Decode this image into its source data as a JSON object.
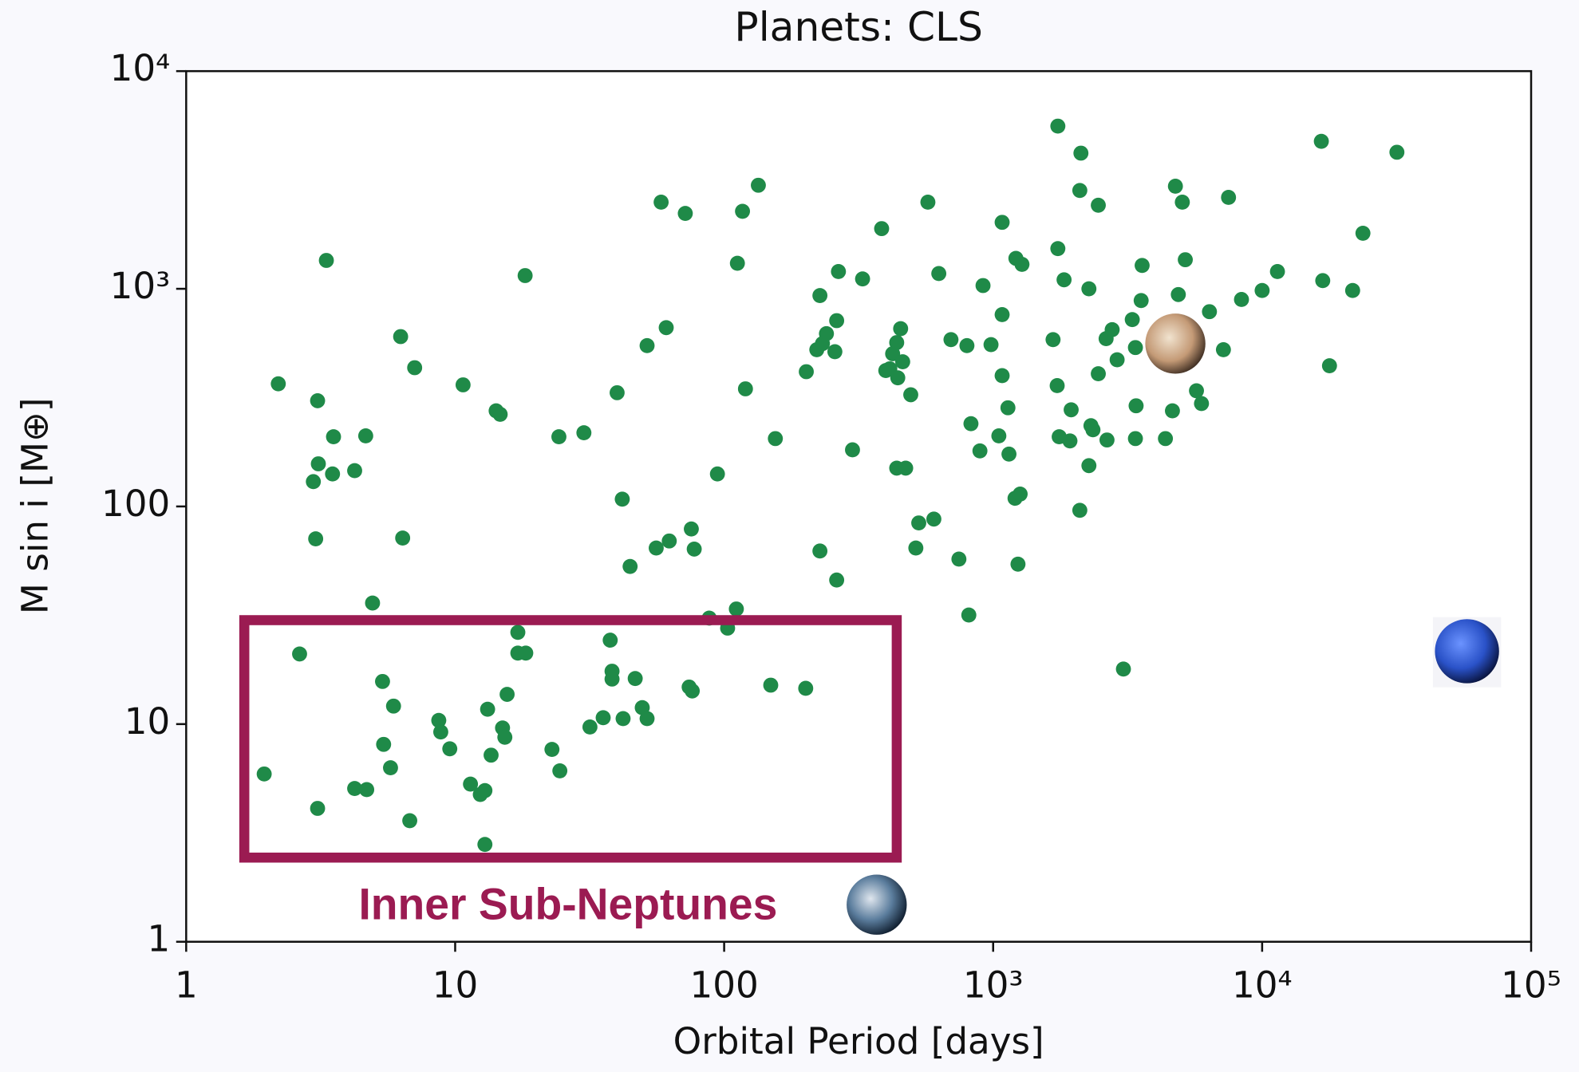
{
  "chart_data": {
    "type": "scatter",
    "title": "Planets: CLS",
    "x_label": "Orbital Period [days]",
    "y_label": "M sin i [M⊕]",
    "annotation": "Inner Sub-Neptunes",
    "xscale": "log",
    "yscale": "log",
    "color": "#1f8a48",
    "xlim": [
      1,
      100000
    ],
    "ylim": [
      1,
      10000
    ],
    "xticks": [
      1,
      10,
      100,
      {
        "value": 1000,
        "label": "10³"
      },
      {
        "value": 10000,
        "label": "10⁴"
      },
      {
        "value": 100000,
        "label": "10⁵"
      }
    ],
    "yticks": [
      1,
      10,
      100,
      {
        "value": 1000,
        "label": "10³"
      },
      {
        "value": 10000,
        "label": "10⁴"
      }
    ],
    "x": [
      1.95,
      2.2,
      2.64,
      3.08,
      3.08,
      3.1,
      2.97,
      3.03,
      3.32,
      3.5,
      3.53,
      4.23,
      4.23,
      4.65,
      4.69,
      4.93,
      5.37,
      5.42,
      5.75,
      5.9,
      6.27,
      6.38,
      6.78,
      7.07,
      8.69,
      8.84,
      9.55,
      10.7,
      11.4,
      12.4,
      12.9,
      12.9,
      13.2,
      13.6,
      14.2,
      14.7,
      15.0,
      15.3,
      15.6,
      17.1,
      17.1,
      18.3,
      18.2,
      22.9,
      24.3,
      24.5,
      30.1,
      31.7,
      35.5,
      37.7,
      38.3,
      38.3,
      40,
      41.8,
      42.1,
      44.7,
      46.7,
      49.6,
      51.7,
      51.7,
      55.9,
      58.3,
      60.9,
      62.5,
      71.7,
      74.1,
      76.1,
      75.5,
      77.4,
      88,
      94.4,
      103,
      111,
      112,
      117,
      120,
      134,
      149,
      155,
      201,
      202,
      221,
      227,
      227,
      232,
      240,
      258,
      262,
      266,
      262,
      300,
      327,
      385,
      399,
      413,
      423,
      438,
      442,
      438,
      453,
      461,
      473,
      494,
      529,
      572,
      602,
      628,
      516,
      697,
      746,
      799,
      812,
      827,
      893,
      917,
      982,
      1050,
      1080,
      1080,
      1080,
      1135,
      1145,
      1215,
      1206,
      1260,
      1280,
      1237,
      1670,
      1740,
      1740,
      1730,
      1760,
      1835,
      1950,
      1930,
      2120,
      2100,
      2100,
      2270,
      2270,
      2310,
      2350,
      2460,
      2460,
      2630,
      2650,
      2770,
      2890,
      3050,
      3290,
      3380,
      3380,
      3400,
      3550,
      3580,
      4370,
      4640,
      4760,
      4880,
      5050,
      5180,
      5700,
      5950,
      6370,
      7180,
      7500,
      8380,
      10000,
      11400,
      16600,
      16800,
      17800,
      21700,
      23700,
      31700
    ],
    "values": [
      5.9,
      366,
      21,
      4.1,
      306,
      157,
      130,
      71,
      1350,
      141,
      209,
      146,
      5.06,
      211,
      5.0,
      36,
      15.7,
      8.07,
      6.3,
      12.1,
      603,
      71.6,
      3.6,
      434,
      10.4,
      9.2,
      7.7,
      362,
      5.3,
      4.75,
      4.95,
      2.8,
      11.7,
      7.2,
      275,
      265,
      9.6,
      8.7,
      13.7,
      26.4,
      21.2,
      21.2,
      1150,
      7.65,
      209,
      6.1,
      218,
      9.7,
      10.7,
      24.3,
      17.5,
      16.1,
      333,
      108,
      10.6,
      53,
      16.2,
      11.9,
      548,
      10.6,
      64.4,
      2500,
      663,
      69.4,
      2220,
      14.8,
      14.2,
      78.8,
      63.7,
      30.7,
      141,
      27.6,
      33.8,
      1310,
      2270,
      347,
      2990,
      15.1,
      205,
      14.6,
      416,
      525,
      931,
      62.4,
      560,
      622,
      514,
      714,
      1200,
      45.9,
      182,
      1110,
      1890,
      421,
      429,
      503,
      566,
      390,
      150,
      656,
      462,
      150,
      326,
      84,
      2500,
      87.5,
      1175,
      64.4,
      584,
      57.3,
      548,
      31.7,
      240,
      180,
      1035,
      554,
      211,
      2020,
      761,
      399,
      284,
      174,
      1380,
      109,
      114,
      1295,
      54.3,
      584,
      5590,
      1530,
      359,
      209,
      1100,
      278,
      200,
      4200,
      2830,
      96,
      1000,
      154,
      235,
      225,
      2420,
      407,
      590,
      202,
      649,
      472,
      17.9,
      722,
      537,
      205,
      290,
      883,
      1280,
      205,
      275,
      2960,
      941,
      2500,
      1360,
      340,
      297,
      785,
      525,
      2630,
      893,
      982,
      1200,
      4760,
      1090,
      443,
      982,
      1800,
      4240
    ]
  }
}
